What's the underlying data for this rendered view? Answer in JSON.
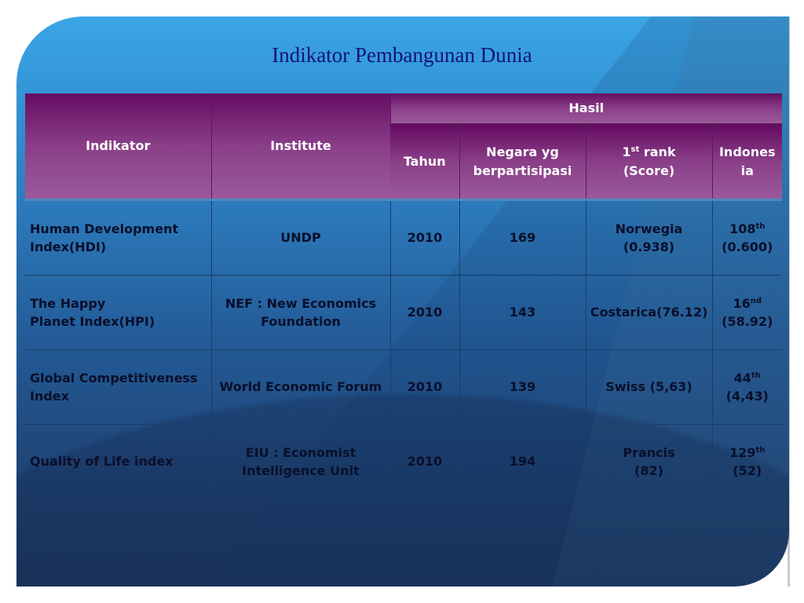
{
  "title": "Indikator  Pembangunan Dunia",
  "headers": {
    "indikator": "Indikator",
    "institute": "Institute",
    "hasil": "Hasil",
    "tahun": "Tahun",
    "negara_l1": "Negara yg",
    "negara_l2": "berpartisipasi",
    "rank_num": "1",
    "rank_sup": "st",
    "rank_rest": " rank",
    "rank_l2": "(Score)",
    "indonesia_l1": "Indones",
    "indonesia_l2": "ia"
  },
  "rows": [
    {
      "indikator_l1": "Human Development",
      "indikator_l2": "Index(HDI)",
      "institute_l1": "UNDP",
      "institute_l2": "",
      "tahun": "2010",
      "negara": "169",
      "rank_l1": "Norwegia",
      "rank_l2": "(0.938)",
      "indo_rank": "108",
      "indo_sup": "th",
      "indo_score": "(0.600)"
    },
    {
      "indikator_l1": "The Happy",
      "indikator_l2": "Planet Index(HPI)",
      "institute_l1": "NEF : New Economics",
      "institute_l2": "Foundation",
      "tahun": "2010",
      "negara": "143",
      "rank_l1": "Costarica(76.12)",
      "rank_l2": "",
      "indo_rank": "16",
      "indo_sup": "nd",
      "indo_score": "(58.92)"
    },
    {
      "indikator_l1": "Global Competitiveness",
      "indikator_l2": "Index",
      "institute_l1": "World Economic Forum",
      "institute_l2": "",
      "tahun": "2010",
      "negara": "139",
      "rank_l1": "Swiss (5,63)",
      "rank_l2": "",
      "indo_rank": "44",
      "indo_sup": "th",
      "indo_score": "(4,43)"
    },
    {
      "indikator_l1": "Quality of Life index",
      "indikator_l2": "",
      "institute_l1": "EIU : Economist",
      "institute_l2": "Intelligence Unit",
      "tahun": "2010",
      "negara": "194",
      "rank_l1": "Prancis",
      "rank_l2": "(82)",
      "indo_rank": "129",
      "indo_sup": "th",
      "indo_score": "(52)"
    }
  ]
}
